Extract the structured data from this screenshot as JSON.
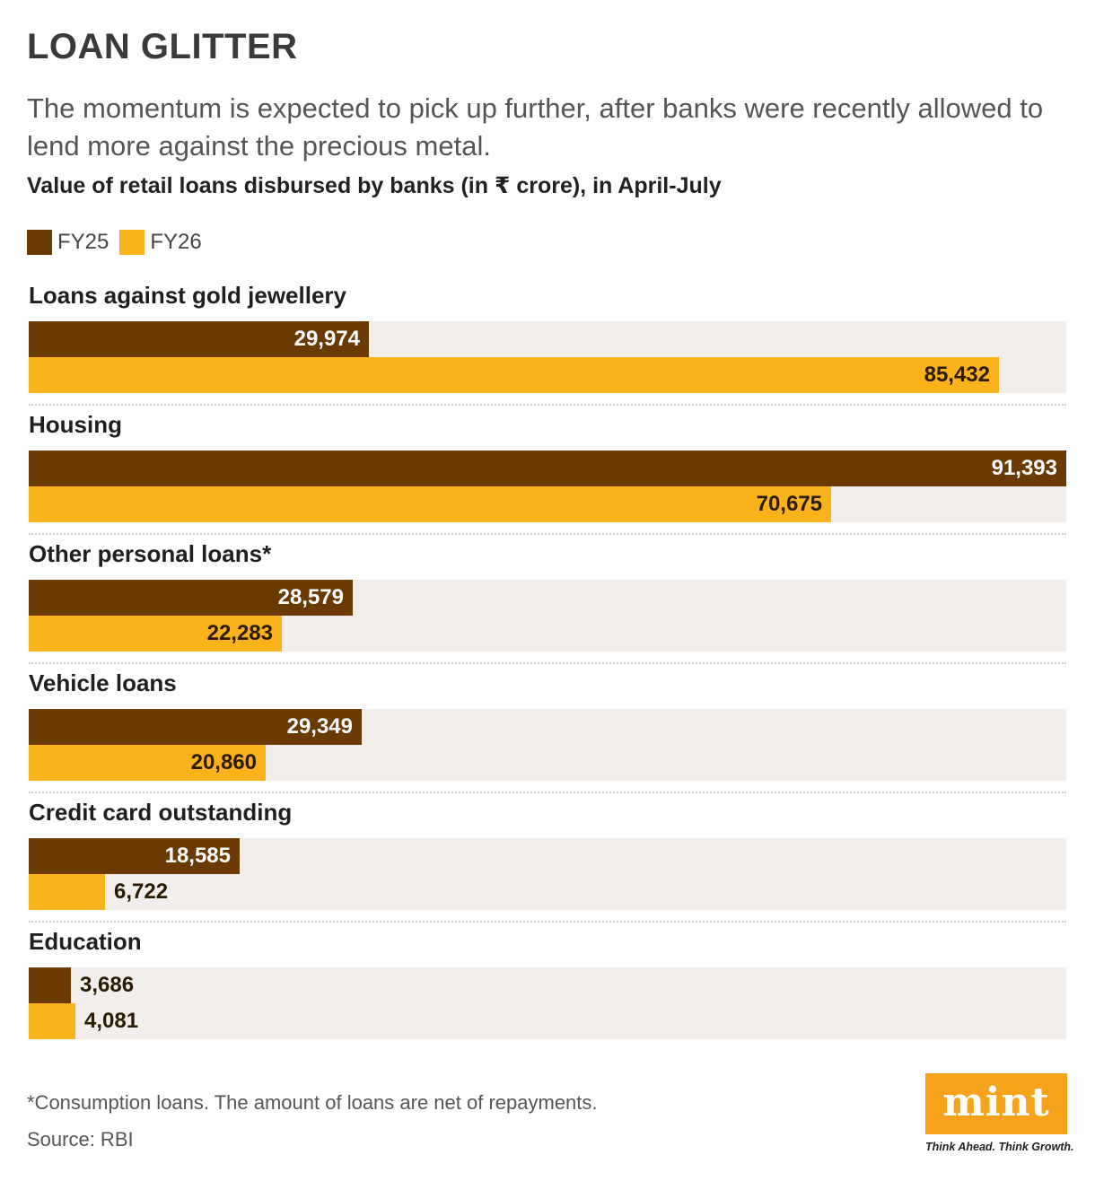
{
  "header": {
    "title": "LOAN GLITTER",
    "subtitle": "The momentum is expected to pick up further, after banks were recently allowed to lend more against the precious metal."
  },
  "colors": {
    "fy25": "#6b3a02",
    "fy26": "#fbb31b",
    "track": "#f1eeec",
    "logo": "#f7a21b"
  },
  "chart_data": {
    "type": "bar",
    "orientation": "horizontal",
    "title": "Value of retail loans disbursed by banks (in ₹ crore), in April-July",
    "categories": [
      "Loans against gold jewellery",
      "Housing",
      "Other personal loans*",
      "Vehicle loans",
      "Credit card outstanding",
      "Education"
    ],
    "series": [
      {
        "name": "FY25",
        "values": [
          29974,
          91393,
          28579,
          29349,
          18585,
          3686
        ],
        "labels": [
          "29,974",
          "91,393",
          "28,579",
          "29,349",
          "18,585",
          "3,686"
        ]
      },
      {
        "name": "FY26",
        "values": [
          85432,
          70675,
          22283,
          20860,
          6722,
          4081
        ],
        "labels": [
          "85,432",
          "70,675",
          "22,283",
          "20,860",
          "6,722",
          "4,081"
        ]
      }
    ],
    "xlim": [
      0,
      91393
    ],
    "legend": "top-left",
    "grid": false
  },
  "footer": {
    "footnote": "*Consumption loans. The amount of loans are net of repayments.",
    "source": "Source: RBI"
  },
  "brand": {
    "logo_text": "mint",
    "tagline": "Think Ahead. Think Growth."
  }
}
